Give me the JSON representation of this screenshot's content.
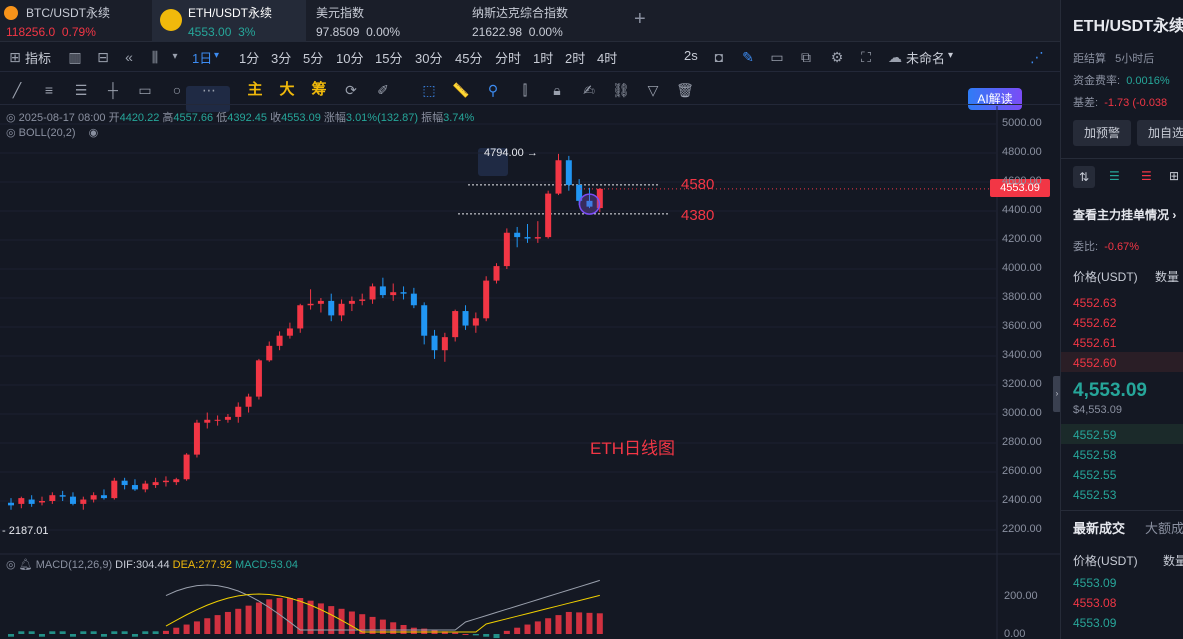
{
  "tabs": [
    {
      "name": "BTC/USDT永续",
      "price": "118256.0",
      "change": "0.79%",
      "color": "#f23645"
    },
    {
      "name": "ETH/USDT永续",
      "price": "4553.00",
      "change": "3%",
      "color": "#26a69a"
    },
    {
      "name": "美元指数",
      "price": "97.8509",
      "change": "0.00%",
      "color": "#c8ccd6"
    },
    {
      "name": "纳斯达克综合指数",
      "price": "21622.98",
      "change": "0.00%",
      "color": "#c8ccd6"
    }
  ],
  "add_tab": "+",
  "toolbar": {
    "indicator": "指标",
    "interval": "1日",
    "intervals": [
      "1分",
      "3分",
      "5分",
      "10分",
      "15分",
      "30分",
      "45分",
      "分时",
      "1时",
      "2时",
      "4时"
    ],
    "refresh": "2s",
    "unnamed": "未命名",
    "ai": "AI解读"
  },
  "draw_tools": {
    "main": "主",
    "big": "大",
    "chips": "筹"
  },
  "ohlc": {
    "date": "2025-08-17 08:00",
    "open_l": "开",
    "open": "4420.22",
    "high_l": "高",
    "high": "4557.66",
    "low_l": "低",
    "low": "4392.45",
    "close_l": "收",
    "close": "4553.09",
    "chg_l": "涨幅",
    "chg": "3.01%(132.87)",
    "amp_l": "振幅",
    "amp": "3.74%"
  },
  "boll": "BOLL(20,2)",
  "macd": {
    "label": "MACD(12,26,9)",
    "dif": "DIF:304.44",
    "dea": "DEA:277.92",
    "macd": "MACD:53.04"
  },
  "annotations": {
    "l4580": "4580",
    "l4380": "4380",
    "title": "ETH日线图",
    "high_mark": "4794.00",
    "low_mark": "2187.01"
  },
  "price_axis": [
    "5000.00",
    "4800.00",
    "4600.00",
    "4400.00",
    "4200.00",
    "4000.00",
    "3800.00",
    "3600.00",
    "3400.00",
    "3200.00",
    "3000.00",
    "2800.00",
    "2600.00",
    "2400.00",
    "2200.00"
  ],
  "current_price_tag": "4553.09",
  "macd_axis": [
    "200.00",
    "0.00"
  ],
  "colors": {
    "up": "#f23645",
    "down": "#2196f3",
    "bg": "#141823"
  },
  "chart_data": {
    "type": "candlestick",
    "series": [
      {
        "o": 2388,
        "h": 2420,
        "l": 2340,
        "c": 2370
      },
      {
        "o": 2380,
        "h": 2430,
        "l": 2350,
        "c": 2420
      },
      {
        "o": 2410,
        "h": 2440,
        "l": 2360,
        "c": 2380
      },
      {
        "o": 2390,
        "h": 2430,
        "l": 2370,
        "c": 2400
      },
      {
        "o": 2400,
        "h": 2460,
        "l": 2380,
        "c": 2440
      },
      {
        "o": 2440,
        "h": 2470,
        "l": 2400,
        "c": 2430
      },
      {
        "o": 2430,
        "h": 2460,
        "l": 2370,
        "c": 2380
      },
      {
        "o": 2380,
        "h": 2430,
        "l": 2340,
        "c": 2410
      },
      {
        "o": 2410,
        "h": 2460,
        "l": 2390,
        "c": 2440
      },
      {
        "o": 2440,
        "h": 2480,
        "l": 2410,
        "c": 2420
      },
      {
        "o": 2420,
        "h": 2560,
        "l": 2410,
        "c": 2540
      },
      {
        "o": 2540,
        "h": 2560,
        "l": 2480,
        "c": 2510
      },
      {
        "o": 2510,
        "h": 2550,
        "l": 2470,
        "c": 2480
      },
      {
        "o": 2480,
        "h": 2540,
        "l": 2460,
        "c": 2520
      },
      {
        "o": 2510,
        "h": 2560,
        "l": 2490,
        "c": 2530
      },
      {
        "o": 2530,
        "h": 2570,
        "l": 2500,
        "c": 2540
      },
      {
        "o": 2530,
        "h": 2560,
        "l": 2510,
        "c": 2550
      },
      {
        "o": 2550,
        "h": 2730,
        "l": 2540,
        "c": 2720
      },
      {
        "o": 2720,
        "h": 2960,
        "l": 2700,
        "c": 2940
      },
      {
        "o": 2940,
        "h": 3010,
        "l": 2900,
        "c": 2960
      },
      {
        "o": 2960,
        "h": 2990,
        "l": 2920,
        "c": 2960
      },
      {
        "o": 2960,
        "h": 3000,
        "l": 2940,
        "c": 2980
      },
      {
        "o": 2980,
        "h": 3080,
        "l": 2940,
        "c": 3050
      },
      {
        "o": 3050,
        "h": 3140,
        "l": 3010,
        "c": 3120
      },
      {
        "o": 3120,
        "h": 3380,
        "l": 3100,
        "c": 3370
      },
      {
        "o": 3370,
        "h": 3500,
        "l": 3360,
        "c": 3470
      },
      {
        "o": 3470,
        "h": 3570,
        "l": 3440,
        "c": 3540
      },
      {
        "o": 3540,
        "h": 3630,
        "l": 3520,
        "c": 3590
      },
      {
        "o": 3590,
        "h": 3760,
        "l": 3560,
        "c": 3750
      },
      {
        "o": 3750,
        "h": 3860,
        "l": 3720,
        "c": 3760
      },
      {
        "o": 3760,
        "h": 3800,
        "l": 3700,
        "c": 3780
      },
      {
        "o": 3780,
        "h": 3830,
        "l": 3640,
        "c": 3680
      },
      {
        "o": 3680,
        "h": 3790,
        "l": 3640,
        "c": 3760
      },
      {
        "o": 3760,
        "h": 3810,
        "l": 3710,
        "c": 3780
      },
      {
        "o": 3780,
        "h": 3830,
        "l": 3750,
        "c": 3790
      },
      {
        "o": 3790,
        "h": 3900,
        "l": 3760,
        "c": 3880
      },
      {
        "o": 3880,
        "h": 3940,
        "l": 3800,
        "c": 3820
      },
      {
        "o": 3820,
        "h": 3900,
        "l": 3780,
        "c": 3840
      },
      {
        "o": 3840,
        "h": 3880,
        "l": 3790,
        "c": 3830
      },
      {
        "o": 3830,
        "h": 3870,
        "l": 3730,
        "c": 3750
      },
      {
        "o": 3750,
        "h": 3770,
        "l": 3480,
        "c": 3540
      },
      {
        "o": 3540,
        "h": 3580,
        "l": 3380,
        "c": 3440
      },
      {
        "o": 3440,
        "h": 3560,
        "l": 3360,
        "c": 3530
      },
      {
        "o": 3530,
        "h": 3720,
        "l": 3500,
        "c": 3710
      },
      {
        "o": 3710,
        "h": 3750,
        "l": 3580,
        "c": 3610
      },
      {
        "o": 3610,
        "h": 3700,
        "l": 3560,
        "c": 3660
      },
      {
        "o": 3660,
        "h": 3950,
        "l": 3640,
        "c": 3920
      },
      {
        "o": 3920,
        "h": 4040,
        "l": 3900,
        "c": 4020
      },
      {
        "o": 4020,
        "h": 4280,
        "l": 4000,
        "c": 4250
      },
      {
        "o": 4250,
        "h": 4290,
        "l": 4150,
        "c": 4220
      },
      {
        "o": 4220,
        "h": 4310,
        "l": 4180,
        "c": 4210
      },
      {
        "o": 4210,
        "h": 4330,
        "l": 4180,
        "c": 4220
      },
      {
        "o": 4220,
        "h": 4540,
        "l": 4210,
        "c": 4520
      },
      {
        "o": 4520,
        "h": 4794,
        "l": 4510,
        "c": 4750
      },
      {
        "o": 4750,
        "h": 4780,
        "l": 4540,
        "c": 4580
      },
      {
        "o": 4580,
        "h": 4620,
        "l": 4440,
        "c": 4470
      },
      {
        "o": 4470,
        "h": 4560,
        "l": 4420,
        "c": 4430
      },
      {
        "o": 4420,
        "h": 4558,
        "l": 4392,
        "c": 4553
      }
    ]
  },
  "right": {
    "symbol": "ETH/USDT永续",
    "settle_l": "距结算",
    "settle": "5小时后",
    "fund_l": "资金费率:",
    "fund": "0.0016%",
    "basis_l": "基差:",
    "basis": "-1.73 (-0.038",
    "btn_alert": "加预警",
    "btn_watch": "加自选",
    "orders_link": "查看主力挂单情况",
    "ratio_l": "委比:",
    "ratio": "-0.67%",
    "price_h": "价格(USDT)",
    "qty_h": "数量",
    "asks": [
      "4552.63",
      "4552.62",
      "4552.61",
      "4552.60"
    ],
    "last": "4,553.09",
    "last_sub": "$4,553.09",
    "bids": [
      "4552.59",
      "4552.58",
      "4552.55",
      "4552.53"
    ],
    "trade_tab1": "最新成交",
    "trade_tab2": "大额成",
    "trades_price_h": "价格(USDT)",
    "trades_qty_h": "数量",
    "trades": [
      "4553.09",
      "4553.08",
      "4553.09",
      "4553.09"
    ]
  }
}
